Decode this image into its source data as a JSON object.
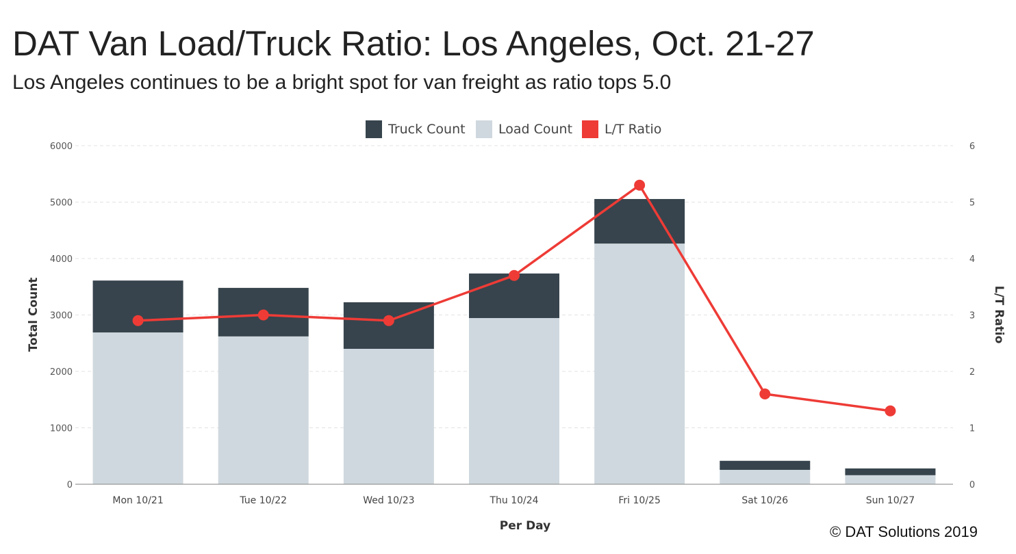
{
  "title": "DAT Van Load/Truck Ratio: Los Angeles, Oct. 21-27",
  "subtitle": "Los Angeles continues to be a bright spot for van freight as ratio tops 5.0",
  "copyright": "© DAT Solutions 2019",
  "chart_data": {
    "type": "bar",
    "stacked": true,
    "categories": [
      "Mon 10/21",
      "Tue 10/22",
      "Wed 10/23",
      "Thu 10/24",
      "Fri 10/25",
      "Sat 10/26",
      "Sun 10/27"
    ],
    "series": [
      {
        "name": "Truck Count",
        "type": "bar",
        "axis": "left",
        "color": "#37444d",
        "values": [
          920,
          860,
          825,
          790,
          790,
          160,
          120
        ]
      },
      {
        "name": "Load Count",
        "type": "bar",
        "axis": "left",
        "color": "#cfd8de",
        "values": [
          2690,
          2620,
          2400,
          2945,
          4265,
          255,
          160
        ]
      },
      {
        "name": "L/T Ratio",
        "type": "line",
        "axis": "right",
        "color": "#ee3b36",
        "values": [
          2.9,
          3.0,
          2.9,
          3.7,
          5.3,
          1.6,
          1.3
        ]
      }
    ],
    "xlabel": "Per Day",
    "ylabel": "Total Count",
    "y2label": "L/T Ratio",
    "ylim": [
      0,
      6000
    ],
    "y2lim": [
      0,
      6
    ],
    "yticks": [
      "0",
      "1000",
      "2000",
      "3000",
      "4000",
      "5000",
      "6000"
    ],
    "y2ticks": [
      "0",
      "1",
      "2",
      "3",
      "4",
      "5",
      "6"
    ],
    "legend_position": "top",
    "grid": true
  }
}
